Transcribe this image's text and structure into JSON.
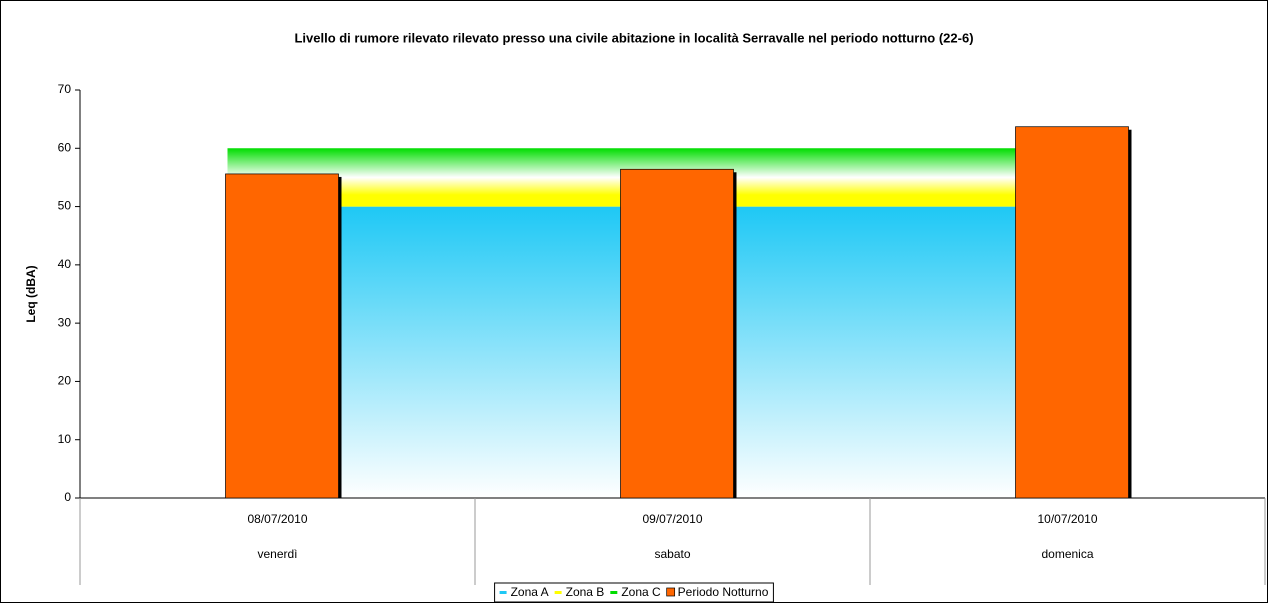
{
  "chart_data": {
    "type": "bar",
    "title": "Livello di rumore rilevato rilevato presso una civile abitazione in località Serravalle nel periodo notturno (22-6)",
    "y_label": "Leq (dBA)",
    "categories": [
      "08/07/2010",
      "09/07/2010",
      "10/07/2010"
    ],
    "categories2": [
      "venerdì",
      "sabato",
      "domenica"
    ],
    "ylim": [
      0,
      70
    ],
    "yticks": [
      0,
      10,
      20,
      30,
      40,
      50,
      60,
      70
    ],
    "stacked_areas": true,
    "series": [
      {
        "name": "Zona A",
        "type": "area",
        "color": "#1ec8f5",
        "values": [
          50,
          50,
          50
        ]
      },
      {
        "name": "Zona B",
        "type": "area",
        "color": "#ffff00",
        "values": [
          5,
          5,
          5
        ]
      },
      {
        "name": "Zona C",
        "type": "area",
        "color": "#00dd00",
        "values": [
          5,
          5,
          5
        ]
      },
      {
        "name": "Periodo Notturno",
        "type": "bar",
        "color": "#ff6600",
        "values": [
          55.6,
          56.4,
          63.7
        ]
      }
    ]
  }
}
